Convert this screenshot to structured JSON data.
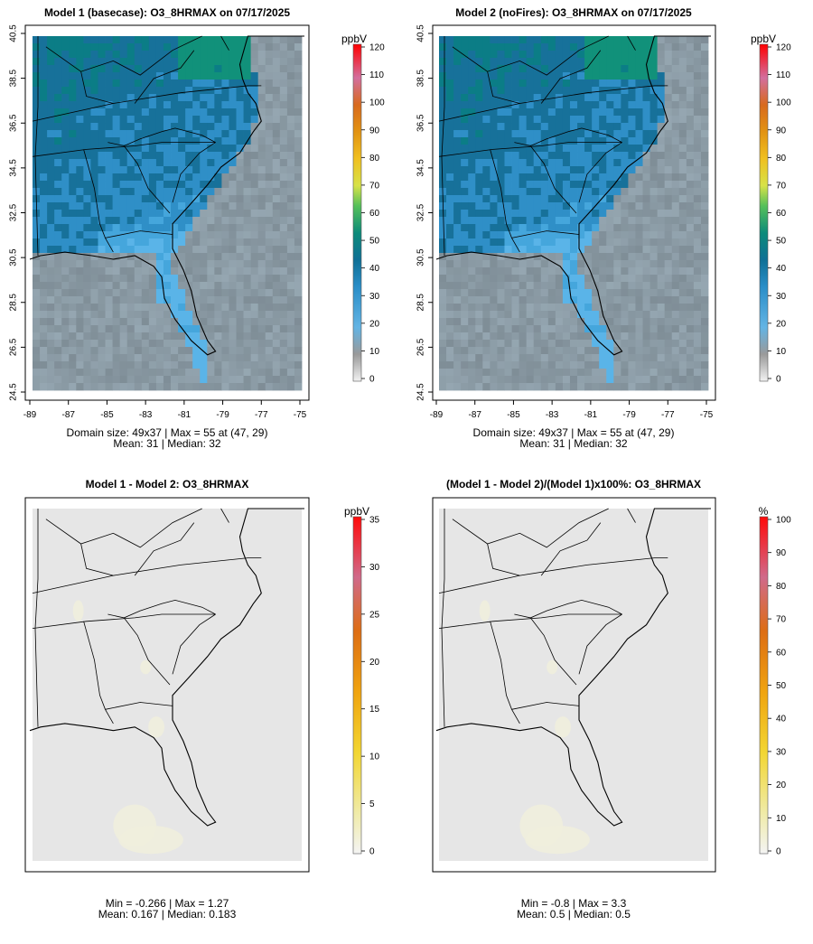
{
  "panels": [
    {
      "title": "Model 1 (basecase): O3_8HRMAX on 07/17/2025",
      "kind": "conc",
      "caption1": "Domain size: 49x37 | Max = 55 at (47, 29)",
      "caption2": "Mean: 31 |  Median: 32",
      "legend": {
        "unit": "ppbV",
        "ticks": [
          "0",
          "10",
          "20",
          "30",
          "40",
          "50",
          "60",
          "70",
          "80",
          "90",
          "100",
          "110",
          "120"
        ]
      },
      "stats": {
        "mean": 31,
        "median": 32,
        "max": 55,
        "max_cell": [
          47,
          29
        ],
        "domain": [
          49,
          37
        ]
      }
    },
    {
      "title": "Model 2 (noFires): O3_8HRMAX on 07/17/2025",
      "kind": "conc",
      "caption1": "Domain size: 49x37 | Max = 55 at (47, 29)",
      "caption2": "Mean: 31 |  Median: 32",
      "legend": {
        "unit": "ppbV",
        "ticks": [
          "0",
          "10",
          "20",
          "30",
          "40",
          "50",
          "60",
          "70",
          "80",
          "90",
          "100",
          "110",
          "120"
        ]
      },
      "stats": {
        "mean": 31,
        "median": 32,
        "max": 55,
        "max_cell": [
          47,
          29
        ],
        "domain": [
          49,
          37
        ]
      }
    },
    {
      "title": "Model 1 - Model 2: O3_8HRMAX",
      "kind": "diff",
      "caption1": "Min = -0.266 | Max = 1.27",
      "caption2": "Mean: 0.167 |  Median: 0.183",
      "legend": {
        "unit": "ppbV",
        "ticks": [
          "0",
          "5",
          "10",
          "15",
          "20",
          "25",
          "30",
          "35"
        ]
      },
      "stats": {
        "min": -0.266,
        "max": 1.27,
        "mean": 0.167,
        "median": 0.183
      }
    },
    {
      "title": "(Model 1 - Model 2)/(Model 1)x100%: O3_8HRMAX",
      "kind": "pct",
      "caption1": "Min = -0.8 | Max = 3.3",
      "caption2": "Mean: 0.5 |  Median: 0.5",
      "legend": {
        "unit": "%",
        "ticks": [
          "0",
          "10",
          "20",
          "30",
          "40",
          "50",
          "60",
          "70",
          "80",
          "90",
          "100"
        ]
      },
      "stats": {
        "min": -0.8,
        "max": 3.3,
        "mean": 0.5,
        "median": 0.5
      }
    }
  ],
  "axes": {
    "x_ticks": [
      "-89",
      "-87",
      "-85",
      "-83",
      "-81",
      "-79",
      "-77",
      "-75"
    ],
    "y_ticks": [
      "24.5",
      "26.5",
      "28.5",
      "30.5",
      "32.5",
      "34.5",
      "36.5",
      "38.5",
      "40.5"
    ]
  },
  "colors": {
    "ocean": "#8a9aa4",
    "land_low": "#59b3e6",
    "land_mid": "#2f8fc7",
    "land_high": "#0a7a90",
    "diff_bg": "#e6e6e6",
    "diff_warm": "#efeedd"
  }
}
